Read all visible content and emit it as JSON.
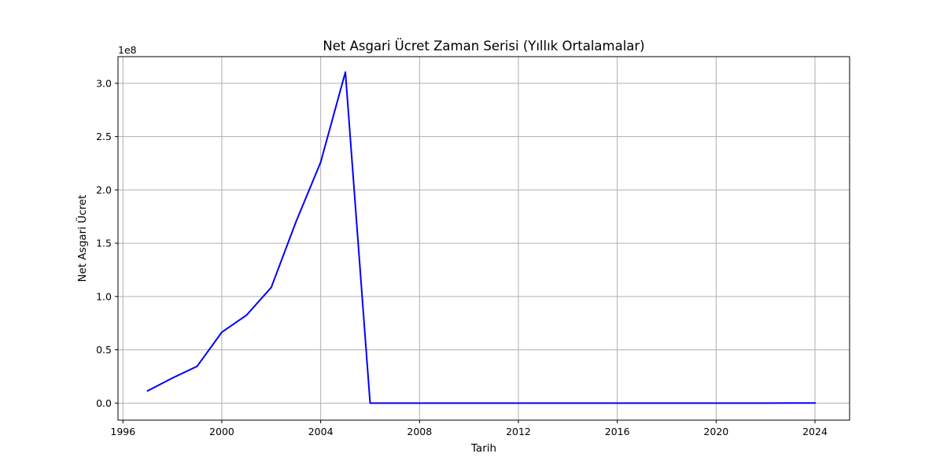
{
  "chart_data": {
    "type": "line",
    "title": "Net Asgari Ücret Zaman Serisi (Yıllık Ortalamalar)",
    "xlabel": "Tarih",
    "ylabel": "Net Asgari Ücret",
    "y_offset_text": "1e8",
    "y_multiplier": 100000000,
    "xlim": [
      1995.8,
      2025.4
    ],
    "ylim": [
      -16000000,
      325000000
    ],
    "x_ticks": [
      1996,
      2000,
      2004,
      2008,
      2012,
      2016,
      2020,
      2024
    ],
    "x_tick_labels": [
      "1996",
      "2000",
      "2004",
      "2008",
      "2012",
      "2016",
      "2020",
      "2024"
    ],
    "y_ticks": [
      0,
      50000000,
      100000000,
      150000000,
      200000000,
      250000000,
      300000000
    ],
    "y_tick_labels": [
      "0.0",
      "0.5",
      "1.0",
      "1.5",
      "2.0",
      "2.5",
      "3.0"
    ],
    "grid": true,
    "line_color": "#0000ff",
    "series": [
      {
        "x": [
          1997,
          1998,
          1999,
          2000,
          2001,
          2002,
          2003,
          2004,
          2005,
          2006,
          2007,
          2008,
          2009,
          2010,
          2011,
          2012,
          2013,
          2014,
          2015,
          2016,
          2017,
          2018,
          2019,
          2020,
          2021,
          2022,
          2023,
          2024
        ],
        "y": [
          11500000,
          23500000,
          34500000,
          66500000,
          82500000,
          108500000,
          170000000,
          226000000,
          310500000,
          350,
          400,
          460,
          500,
          570,
          640,
          720,
          800,
          880,
          970,
          1110,
          1300,
          1500,
          1820,
          2210,
          2830,
          4860,
          9500,
          13800
        ]
      }
    ]
  }
}
